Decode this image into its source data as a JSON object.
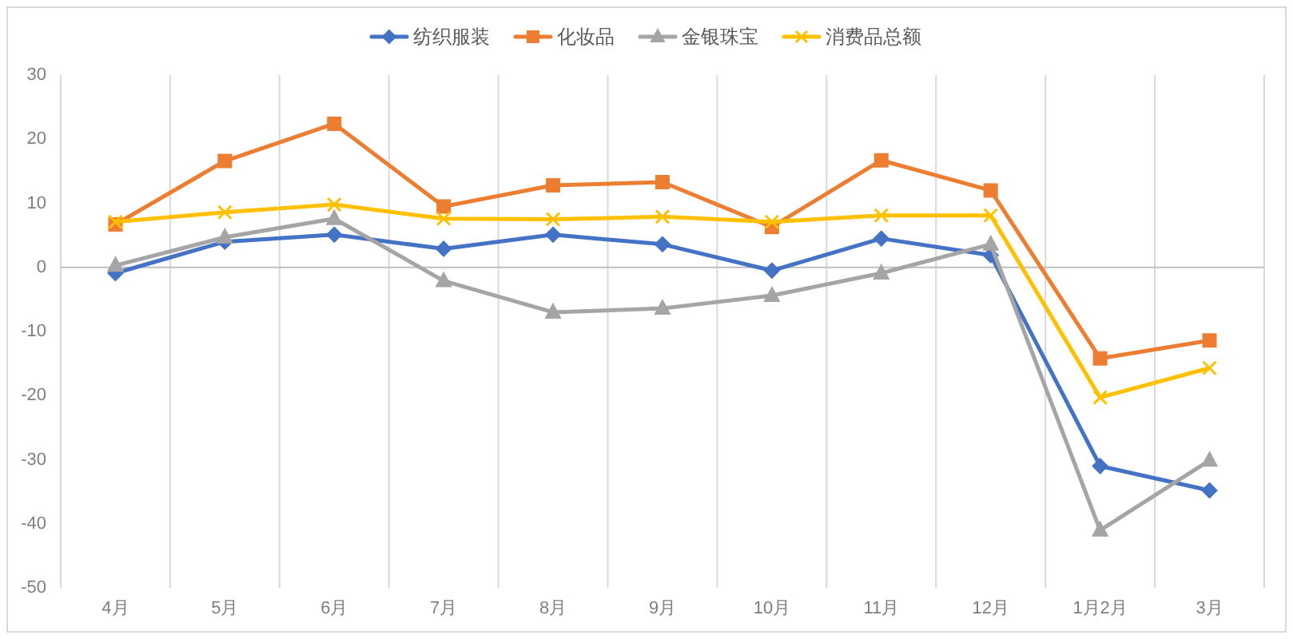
{
  "chart_data": {
    "type": "line",
    "categories": [
      "4月",
      "5月",
      "6月",
      "7月",
      "8月",
      "9月",
      "10月",
      "11月",
      "12月",
      "1月2月",
      "3月"
    ],
    "series": [
      {
        "name": "纺织服装",
        "color": "#4472c4",
        "marker": "diamond",
        "values": [
          -0.9,
          4.0,
          5.1,
          2.9,
          5.1,
          3.6,
          -0.5,
          4.5,
          1.9,
          -31.0,
          -34.8
        ]
      },
      {
        "name": "化妆品",
        "color": "#ed7d31",
        "marker": "square",
        "values": [
          6.7,
          16.6,
          22.4,
          9.5,
          12.8,
          13.3,
          6.3,
          16.7,
          12.0,
          -14.2,
          -11.4
        ]
      },
      {
        "name": "金银珠宝",
        "color": "#a5a5a5",
        "marker": "triangle",
        "values": [
          0.3,
          4.7,
          7.6,
          -2.1,
          -7.0,
          -6.4,
          -4.4,
          -0.9,
          3.6,
          -41.0,
          -30.1
        ]
      },
      {
        "name": "消费品总额",
        "color": "#ffc000",
        "marker": "cross",
        "values": [
          7.1,
          8.6,
          9.8,
          7.6,
          7.5,
          7.9,
          7.1,
          8.1,
          8.1,
          -20.3,
          -15.7
        ]
      }
    ],
    "ylim": [
      -50,
      30
    ],
    "yticks": [
      30,
      20,
      10,
      0,
      -10,
      -20,
      -30,
      -40,
      -50
    ],
    "grid": "x",
    "legend": "top"
  }
}
